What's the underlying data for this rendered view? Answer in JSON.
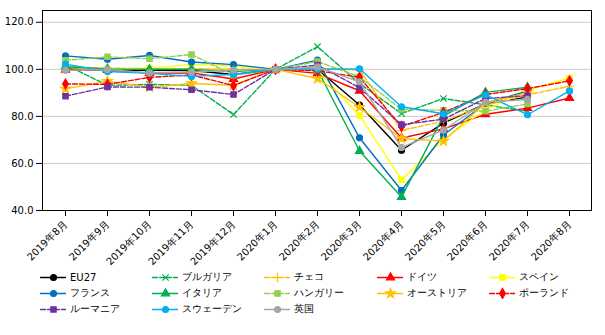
{
  "chart_data": {
    "type": "line",
    "categories": [
      "2019年8月",
      "2019年9月",
      "2019年10月",
      "2019年11月",
      "2019年12月",
      "2020年1月",
      "2020年2月",
      "2020年3月",
      "2020年4月",
      "2020年5月",
      "2020年6月",
      "2020年7月",
      "2020年8月"
    ],
    "series": [
      {
        "name": "EU27",
        "color": "#000000",
        "marker": "circle",
        "line_style": "solid",
        "values": [
          100.3,
          99.6,
          99.6,
          99.5,
          97.8,
          100.0,
          100.0,
          84.8,
          65.6,
          77.1,
          85.4,
          88.2,
          null
        ]
      },
      {
        "name": "ブルガリア",
        "color": "#00b050",
        "marker": "times",
        "line_style": "dashed",
        "values": [
          101.9,
          93.2,
          93.6,
          93.2,
          80.8,
          100.0,
          109.6,
          94.0,
          81.2,
          87.6,
          84.9,
          82.1,
          null
        ]
      },
      {
        "name": "チェコ",
        "color": "#ffc000",
        "marker": "plus",
        "line_style": "dashed",
        "values": [
          101.1,
          100.5,
          100.3,
          100.3,
          100.0,
          100.0,
          100.4,
          99.7,
          74.0,
          78.0,
          84.7,
          89.2,
          92.8
        ]
      },
      {
        "name": "ドイツ",
        "color": "#ff0000",
        "marker": "triangle",
        "line_style": "solid",
        "values": [
          99.8,
          99.7,
          98.4,
          98.5,
          95.9,
          100.0,
          98.3,
          90.9,
          70.8,
          74.7,
          80.9,
          83.5,
          87.8
        ]
      },
      {
        "name": "スペイン",
        "color": "#ffff00",
        "marker": "square",
        "line_style": "solid",
        "values": [
          100.9,
          100.1,
          100.5,
          102.1,
          101.4,
          100.0,
          99.5,
          80.4,
          53.1,
          70.2,
          82.8,
          91.1,
          96.3
        ]
      },
      {
        "name": "フランス",
        "color": "#0070c0",
        "marker": "circle",
        "line_style": "solid",
        "values": [
          105.7,
          104.3,
          105.9,
          103.1,
          102.0,
          100.0,
          103.9,
          70.9,
          48.5,
          72.1,
          85.5,
          90.8,
          null
        ]
      },
      {
        "name": "イタリア",
        "color": "#00b050",
        "marker": "triangle",
        "line_style": "solid",
        "values": [
          101.1,
          100.2,
          100.0,
          100.0,
          99.0,
          100.0,
          99.8,
          65.3,
          45.7,
          80.1,
          90.2,
          92.4,
          null
        ]
      },
      {
        "name": "ハンガリー",
        "color": "#92d050",
        "marker": "square",
        "line_style": "dashed",
        "values": [
          103.8,
          105.3,
          104.5,
          106.3,
          97.5,
          100.0,
          103.3,
          96.8,
          83.0,
          82.6,
          82.2,
          85.3,
          null
        ]
      },
      {
        "name": "オーストリア",
        "color": "#ffc000",
        "marker": "star",
        "line_style": "solid",
        "values": [
          91.7,
          95.0,
          92.4,
          94.0,
          93.2,
          100.0,
          96.1,
          83.9,
          70.6,
          69.5,
          85.7,
          90.1,
          null
        ]
      },
      {
        "name": "ポーランド",
        "color": "#ff0000",
        "marker": "diamond",
        "line_style": "dashed",
        "values": [
          93.8,
          93.6,
          96.6,
          97.6,
          93.1,
          100.0,
          99.4,
          96.6,
          75.7,
          81.7,
          89.3,
          91.8,
          95.1
        ]
      },
      {
        "name": "ルーマニア",
        "color": "#7030a0",
        "marker": "square",
        "line_style": "dashed",
        "values": [
          88.6,
          92.5,
          92.4,
          91.3,
          89.3,
          100.0,
          101.8,
          92.2,
          76.5,
          78.8,
          87.6,
          88.8,
          null
        ]
      },
      {
        "name": "スウェーデン",
        "color": "#00b0f0",
        "marker": "circle",
        "line_style": "solid",
        "values": [
          102.2,
          99.1,
          98.3,
          97.0,
          97.8,
          100.0,
          100.0,
          100.2,
          84.1,
          81.1,
          89.2,
          80.7,
          90.8
        ]
      },
      {
        "name": "英国",
        "color": "#a6a6a6",
        "marker": "circle",
        "line_style": "solid",
        "values": [
          99.6,
          99.9,
          98.5,
          98.8,
          99.7,
          100.0,
          101.0,
          94.7,
          66.8,
          74.2,
          86.0,
          87.2,
          null
        ]
      }
    ],
    "ylim": [
      40.0,
      125.0
    ],
    "yticks": [
      {
        "value": 40,
        "label": "40.0"
      },
      {
        "value": 60,
        "label": "60.0"
      },
      {
        "value": 80,
        "label": "80.0"
      },
      {
        "value": 100,
        "label": "100.0"
      },
      {
        "value": 120,
        "label": "120.0"
      }
    ],
    "grid": true,
    "legend": "bottom"
  }
}
